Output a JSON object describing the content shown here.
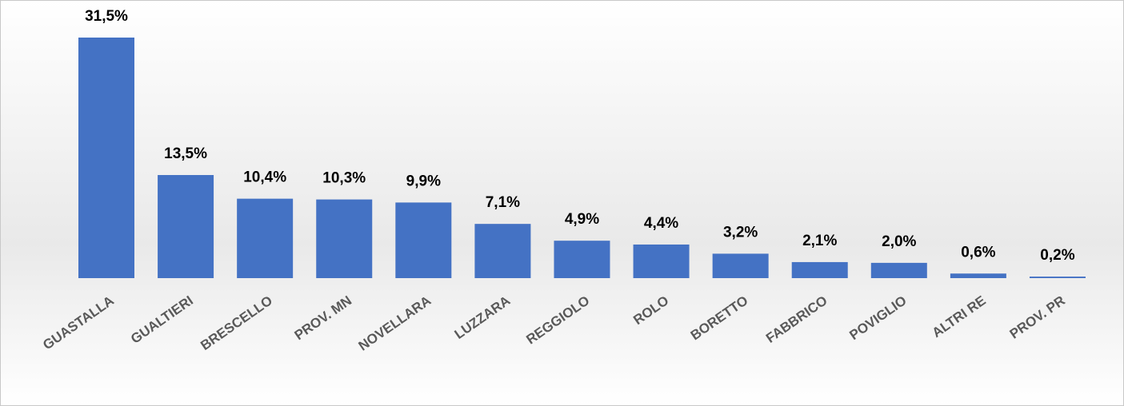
{
  "chart_data": {
    "type": "bar",
    "categories": [
      "GUASTALLA",
      "GUALTIERI",
      "BRESCELLO",
      "PROV. MN",
      "NOVELLARA",
      "LUZZARA",
      "REGGIOLO",
      "ROLO",
      "BORETTO",
      "FABBRICO",
      "POVIGLIO",
      "ALTRI RE",
      "PROV. PR"
    ],
    "values": [
      31.5,
      13.5,
      10.4,
      10.3,
      9.9,
      7.1,
      4.9,
      4.4,
      3.2,
      2.1,
      2.0,
      0.6,
      0.2
    ],
    "value_labels": [
      "31,5%",
      "13,5%",
      "10,4%",
      "10,3%",
      "9,9%",
      "7,1%",
      "4,9%",
      "4,4%",
      "3,2%",
      "2,1%",
      "2,0%",
      "0,6%",
      "0,2%"
    ],
    "color": "#4472c4"
  }
}
